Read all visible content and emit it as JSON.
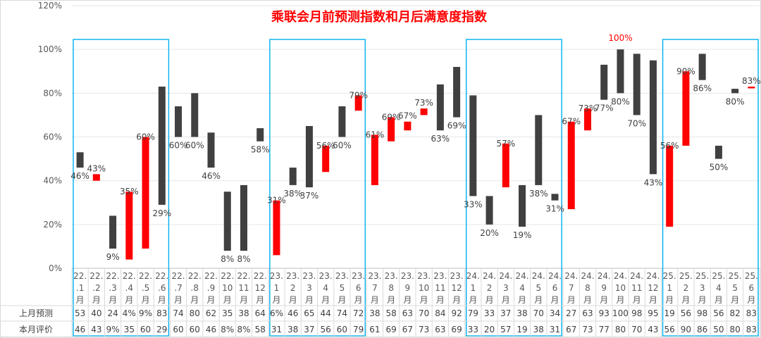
{
  "chart_data": {
    "type": "bar",
    "title": "乘联会月前预测指数和月后满意度指数",
    "ylim": [
      0,
      120
    ],
    "yticks": [
      "0%",
      "20%",
      "40%",
      "60%",
      "80%",
      "100%",
      "120%"
    ],
    "categories": [
      "22.1月",
      "22.2月",
      "22.3月",
      "22.4月",
      "22.5月",
      "22.6月",
      "22.7月",
      "22.8月",
      "22.9月",
      "22.10月",
      "22.11月",
      "22.12月",
      "23.1月",
      "23.2月",
      "23.3月",
      "23.4月",
      "23.5月",
      "23.6月",
      "23.7月",
      "23.8月",
      "23.9月",
      "23.10月",
      "23.11月",
      "23.12月",
      "24.1月",
      "24.2月",
      "24.3月",
      "24.4月",
      "24.5月",
      "24.6月",
      "24.7月",
      "24.8月",
      "24.9月",
      "24.10月",
      "24.11月",
      "24.12月",
      "25.1月",
      "25.2月",
      "25.3月",
      "25.4月",
      "25.5月",
      "25.6月"
    ],
    "cat_lines": [
      [
        "22.",
        ".1",
        "月"
      ],
      [
        "22.",
        ".2",
        "月"
      ],
      [
        "22.",
        ".3",
        "月"
      ],
      [
        "22.",
        ".4",
        "月"
      ],
      [
        "22.",
        ".5",
        "月"
      ],
      [
        "22.",
        ".6",
        "月"
      ],
      [
        "22.",
        ".7",
        "月"
      ],
      [
        "22.",
        ".8",
        "月"
      ],
      [
        "22.",
        ".9",
        "月"
      ],
      [
        "22.",
        "10",
        "月"
      ],
      [
        "22.",
        "11",
        "月"
      ],
      [
        "22.",
        "12",
        "月"
      ],
      [
        "23.",
        "1",
        "月"
      ],
      [
        "23.",
        "2",
        "月"
      ],
      [
        "23.",
        "3",
        "月"
      ],
      [
        "23.",
        "4",
        "月"
      ],
      [
        "23.",
        "5",
        "月"
      ],
      [
        "23.",
        "6",
        "月"
      ],
      [
        "23.",
        "7",
        "月"
      ],
      [
        "23.",
        "8",
        "月"
      ],
      [
        "23.",
        "9",
        "月"
      ],
      [
        "23.",
        "10",
        "月"
      ],
      [
        "23.",
        "11",
        "月"
      ],
      [
        "23.",
        "12",
        "月"
      ],
      [
        "24.",
        "1",
        "月"
      ],
      [
        "24.",
        "2",
        "月"
      ],
      [
        "24.",
        "3",
        "月"
      ],
      [
        "24.",
        "4",
        "月"
      ],
      [
        "24.",
        "5",
        "月"
      ],
      [
        "24.",
        "6",
        "月"
      ],
      [
        "24.",
        "7",
        "月"
      ],
      [
        "24.",
        "8",
        "月"
      ],
      [
        "24.",
        "9",
        "月"
      ],
      [
        "24.",
        "10",
        "月"
      ],
      [
        "24.",
        "11",
        "月"
      ],
      [
        "24.",
        "12",
        "月"
      ],
      [
        "25.",
        "1",
        "月"
      ],
      [
        "25.",
        "2",
        "月"
      ],
      [
        "25.",
        "3",
        "月"
      ],
      [
        "25.",
        "4",
        "月"
      ],
      [
        "25.",
        "5",
        "月"
      ],
      [
        "25.",
        "6",
        "月"
      ]
    ],
    "series": [
      {
        "name": "上月预测",
        "values": [
          53,
          40,
          24,
          4,
          9,
          83,
          74,
          80,
          62,
          35,
          38,
          64,
          6,
          46,
          65,
          44,
          74,
          72,
          38,
          58,
          63,
          70,
          84,
          92,
          79,
          33,
          37,
          38,
          70,
          34,
          27,
          63,
          93,
          100,
          98,
          95,
          19,
          56,
          98,
          56,
          82,
          83
        ],
        "row_text": [
          "53",
          "40",
          "24",
          "4%",
          "9%",
          "83",
          "74",
          "80",
          "62",
          "35",
          "38",
          "64",
          "6%",
          "46",
          "65",
          "44",
          "74",
          "72",
          "38",
          "58",
          "63",
          "70",
          "84",
          "92",
          "79",
          "33",
          "37",
          "38",
          "70",
          "34",
          "27",
          "63",
          "93",
          "100",
          "98",
          "95",
          "19",
          "56",
          "98",
          "56",
          "82",
          "83"
        ]
      },
      {
        "name": "本月评价",
        "values": [
          46,
          43,
          9,
          35,
          60,
          29,
          60,
          60,
          46,
          8,
          8,
          58,
          31,
          38,
          37,
          56,
          60,
          79,
          61,
          69,
          67,
          73,
          63,
          69,
          33,
          20,
          57,
          19,
          38,
          31,
          67,
          73,
          77,
          80,
          70,
          43,
          56,
          90,
          86,
          50,
          80,
          83
        ],
        "row_text": [
          "46",
          "43",
          "9%",
          "35",
          "60",
          "29",
          "60",
          "60",
          "46",
          "8%",
          "8%",
          "58",
          "31",
          "38",
          "37",
          "56",
          "60",
          "79",
          "61",
          "69",
          "67",
          "73",
          "63",
          "69",
          "33",
          "20",
          "57",
          "19",
          "38",
          "31",
          "67",
          "73",
          "77",
          "80",
          "70",
          "43",
          "56",
          "90",
          "86",
          "50",
          "80",
          "83"
        ]
      }
    ],
    "labels": [
      "46%",
      "43%",
      "9%",
      "35%",
      "60%",
      "29%",
      "60%",
      "60%",
      "46%",
      "8%",
      "8%",
      "58%",
      "31%",
      "38%",
      "37%",
      "56%",
      "60%",
      "79%",
      "61%",
      "69%",
      "67%",
      "73%",
      "63%",
      "69%",
      "33%",
      "20%",
      "57%",
      "19%",
      "38%",
      "31%",
      "67%",
      "73%",
      "77%",
      "80%",
      "70%",
      "43%",
      "56%",
      "90%",
      "86%",
      "50%",
      "80%",
      "83%"
    ],
    "high_label": "100%",
    "highlight_groups": [
      [
        0,
        5
      ],
      [
        12,
        17
      ],
      [
        24,
        29
      ],
      [
        36,
        41
      ]
    ],
    "colors": {
      "up": "#ff0000",
      "down": "#404040",
      "box": "#00b0f0",
      "title": "#ff0000"
    }
  }
}
